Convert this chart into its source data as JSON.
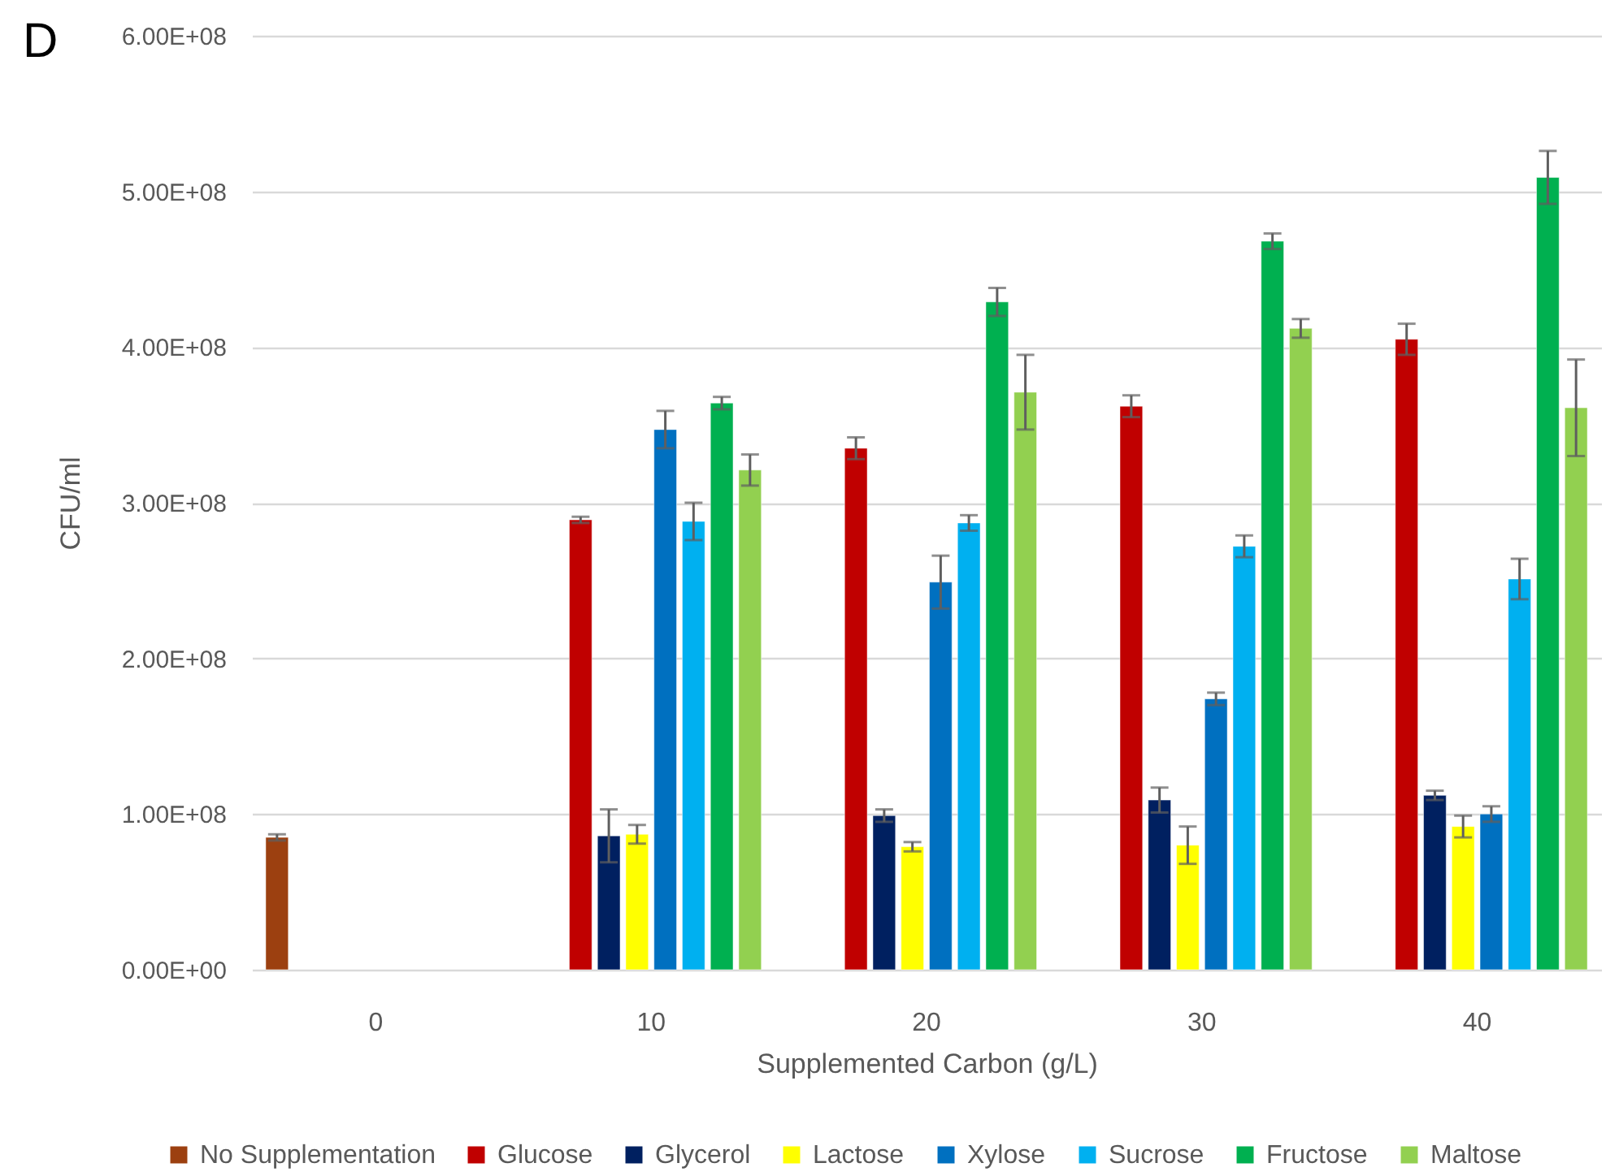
{
  "chart_data": {
    "type": "bar",
    "title": "D",
    "xlabel": "Supplemented Carbon (g/L)",
    "ylabel": "CFU/ml",
    "categories": [
      "0",
      "10",
      "20",
      "30",
      "40"
    ],
    "series": [
      {
        "name": "No Supplementation",
        "color": "#9c4010",
        "values": [
          85000000,
          null,
          null,
          null,
          null
        ],
        "errors": [
          2000000,
          null,
          null,
          null,
          null
        ]
      },
      {
        "name": "Glucose",
        "color": "#c00000",
        "values": [
          null,
          289000000,
          335000000,
          362000000,
          405000000
        ],
        "errors": [
          null,
          2000000,
          7000000,
          7000000,
          10000000
        ]
      },
      {
        "name": "Glycerol",
        "color": "#002060",
        "values": [
          null,
          86000000,
          99000000,
          109000000,
          112000000
        ],
        "errors": [
          null,
          17000000,
          4000000,
          8000000,
          3000000
        ]
      },
      {
        "name": "Lactose",
        "color": "#ffff00",
        "values": [
          null,
          87000000,
          79000000,
          80000000,
          92000000
        ],
        "errors": [
          null,
          6000000,
          3000000,
          12000000,
          7000000
        ]
      },
      {
        "name": "Xylose",
        "color": "#0070c0",
        "values": [
          null,
          347000000,
          249000000,
          174000000,
          100000000
        ],
        "errors": [
          null,
          12000000,
          17000000,
          4000000,
          5000000
        ]
      },
      {
        "name": "Sucrose",
        "color": "#00b0f0",
        "values": [
          null,
          288000000,
          287000000,
          272000000,
          251000000
        ],
        "errors": [
          null,
          12000000,
          5000000,
          7000000,
          13000000
        ]
      },
      {
        "name": "Fructose",
        "color": "#00b050",
        "values": [
          null,
          364000000,
          429000000,
          468000000,
          509000000
        ],
        "errors": [
          null,
          4000000,
          9000000,
          5000000,
          17000000
        ]
      },
      {
        "name": "Maltose",
        "color": "#92d050",
        "values": [
          null,
          321000000,
          371000000,
          412000000,
          361000000
        ],
        "errors": [
          null,
          10000000,
          24000000,
          6000000,
          31000000
        ]
      }
    ],
    "ylim": [
      0,
      600000000
    ],
    "yticks": [
      {
        "value": 0,
        "label": "0.00E+00"
      },
      {
        "value": 100000000,
        "label": "1.00E+08"
      },
      {
        "value": 200000000,
        "label": "2.00E+08"
      },
      {
        "value": 300000000,
        "label": "3.00E+08"
      },
      {
        "value": 400000000,
        "label": "4.00E+08"
      },
      {
        "value": 500000000,
        "label": "5.00E+08"
      },
      {
        "value": 600000000,
        "label": "6.00E+08"
      }
    ],
    "grid": "y",
    "legend": "bottom"
  }
}
